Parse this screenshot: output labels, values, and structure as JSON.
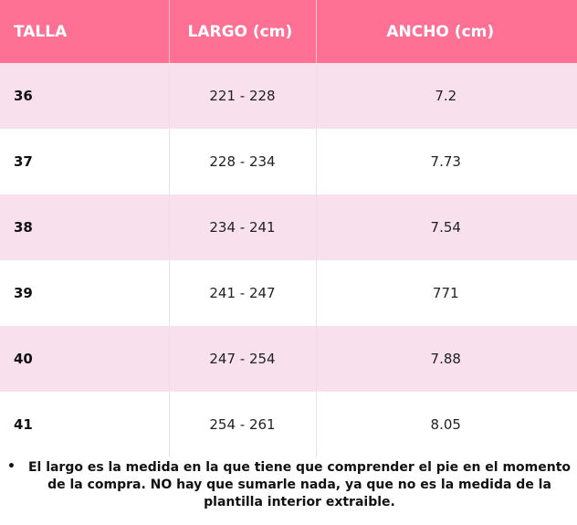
{
  "table": {
    "headers": {
      "size": "TALLA",
      "length": "LARGO (cm)",
      "width": "ANCHO (cm)"
    },
    "rows": [
      {
        "size": "36",
        "length": "221 - 228",
        "width": "7.2"
      },
      {
        "size": "37",
        "length": "228 - 234",
        "width": "7.73"
      },
      {
        "size": "38",
        "length": "234 - 241",
        "width": "7.54"
      },
      {
        "size": "39",
        "length": "241 - 247",
        "width": "771"
      },
      {
        "size": "40",
        "length": "247 - 254",
        "width": "7.88"
      },
      {
        "size": "41",
        "length": "254 - 261",
        "width": "8.05"
      }
    ]
  },
  "note": {
    "bullet": "•",
    "text": "El largo es la medida en la que tiene que comprender el pie en el momento de la compra. NO hay que sumarle nada, ya que no es la medida de la plantilla interior extraible."
  },
  "colors": {
    "header_bg": "#ff7095",
    "row_alt_bg": "#f8e1ed",
    "row_bg": "#ffffff"
  }
}
